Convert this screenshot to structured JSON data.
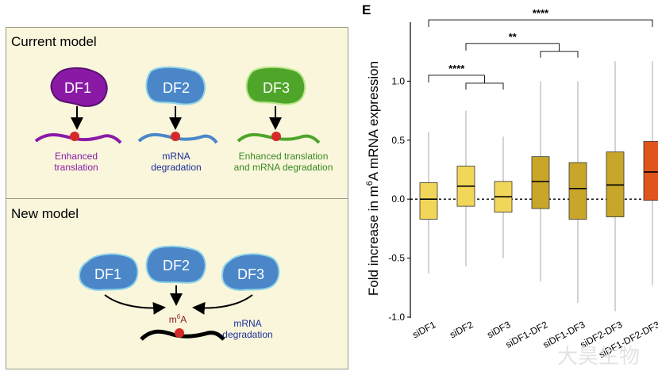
{
  "left": {
    "current_title": "Current model",
    "new_title": "New model",
    "df1": {
      "label": "DF1",
      "caption_line1": "Enhanced",
      "caption_line2": "translation",
      "color": "#8a1aa6",
      "caption_color": "#8a1aa6"
    },
    "df2": {
      "label": "DF2",
      "caption_line1": "mRNA",
      "caption_line2": "degradation",
      "color": "#4a86c8",
      "caption_color": "#1a2f9a"
    },
    "df3": {
      "label": "DF3",
      "caption_line1": "Enhanced translation",
      "caption_line2": "and mRNA degradation",
      "color": "#4fa52a",
      "caption_color": "#3a8a20"
    },
    "new_model": {
      "df1_label": "DF1",
      "df2_label": "DF2",
      "df3_label": "DF3",
      "m6a_base": "m",
      "m6a_sup": "6",
      "m6a_tail": "A",
      "caption_line1": "mRNA",
      "caption_line2": "degradation",
      "color": "#4a86c8",
      "caption_color": "#1a2f9a"
    }
  },
  "right": {
    "panel_letter": "E",
    "watermark": "大昊生物",
    "chart_data": {
      "type": "box",
      "ylabel_pre": "Fold increase in m",
      "ylabel_sup": "6",
      "ylabel_post": "A mRNA expression",
      "ylim": [
        -1.0,
        1.5
      ],
      "yticks": [
        "1.0",
        "0.5",
        "0.0",
        "-0.5",
        "-1.0"
      ],
      "ytick_values": [
        1.0,
        0.5,
        0.0,
        -0.5,
        -1.0
      ],
      "reference_line": 0.0,
      "categories": [
        "siDF1",
        "siDF2",
        "siDF3",
        "siDF1-DF2",
        "siDF1-DF3",
        "siDF2-DF3",
        "siDF1-DF2-DF3"
      ],
      "boxes": [
        {
          "category": "siDF1",
          "whisker_low": -0.63,
          "q1": -0.17,
          "median": 0.0,
          "q3": 0.14,
          "whisker_high": 0.57,
          "color": "#f2d65a"
        },
        {
          "category": "siDF2",
          "whisker_low": -0.57,
          "q1": -0.06,
          "median": 0.11,
          "q3": 0.28,
          "whisker_high": 0.75,
          "color": "#f2d65a"
        },
        {
          "category": "siDF3",
          "whisker_low": -0.5,
          "q1": -0.11,
          "median": 0.02,
          "q3": 0.15,
          "whisker_high": 0.53,
          "color": "#f2d65a"
        },
        {
          "category": "siDF1-DF2",
          "whisker_low": -0.7,
          "q1": -0.08,
          "median": 0.15,
          "q3": 0.36,
          "whisker_high": 1.0,
          "color": "#c8a62a"
        },
        {
          "category": "siDF1-DF3",
          "whisker_low": -0.88,
          "q1": -0.17,
          "median": 0.09,
          "q3": 0.31,
          "whisker_high": 1.0,
          "color": "#c8a62a"
        },
        {
          "category": "siDF2-DF3",
          "whisker_low": -0.95,
          "q1": -0.15,
          "median": 0.12,
          "q3": 0.4,
          "whisker_high": 1.17,
          "color": "#c8a62a"
        },
        {
          "category": "siDF1-DF2-DF3",
          "whisker_low": -0.73,
          "q1": -0.01,
          "median": 0.23,
          "q3": 0.49,
          "whisker_high": 1.17,
          "color": "#e0541e"
        }
      ],
      "significance": [
        {
          "label": "****",
          "from": [
            "siDF1"
          ],
          "to": [
            "siDF2",
            "siDF3"
          ],
          "level": 1.05
        },
        {
          "label": "**",
          "from": [
            "siDF2"
          ],
          "to": [
            "siDF1-DF2",
            "siDF1-DF3"
          ],
          "level": 1.32
        },
        {
          "label": "****",
          "from": [
            "siDF1"
          ],
          "to": [
            "siDF1-DF2-DF3"
          ],
          "level": 1.52
        }
      ]
    }
  }
}
